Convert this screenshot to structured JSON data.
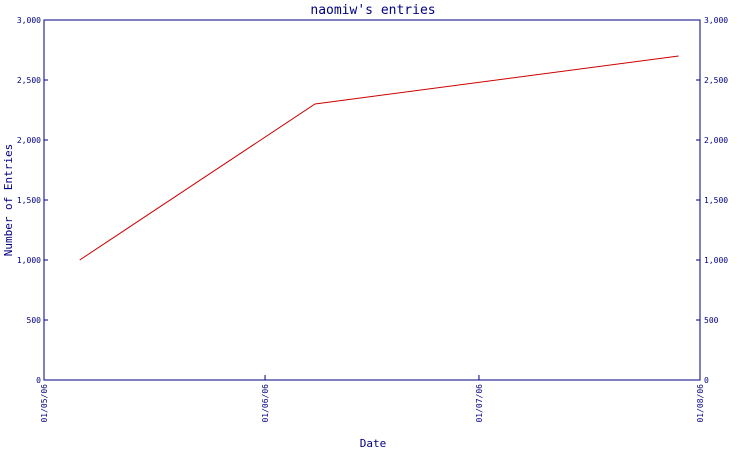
{
  "chart_data": {
    "type": "line",
    "title": "naomiw's entries",
    "xlabel": "Date",
    "ylabel": "Number of Entries",
    "ylim": [
      0,
      3000
    ],
    "y_ticks": [
      0,
      500,
      1000,
      1500,
      2000,
      2500,
      3000
    ],
    "y_tick_labels": [
      "0",
      "500",
      "1,000",
      "1,500",
      "2,000",
      "2,500",
      "3,000"
    ],
    "x_range": [
      "2006-05-01",
      "2006-08-01"
    ],
    "x_ticks": [
      "2006-05-01",
      "2006-06-01",
      "2006-07-01",
      "2006-08-01"
    ],
    "x_tick_labels": [
      "01/05/06",
      "01/06/06",
      "01/07/06",
      "01/08/06"
    ],
    "right_axis_mirrors_left": true,
    "grid": false,
    "series": [
      {
        "x": [
          "2006-05-06",
          "2006-06-08",
          "2006-07-29"
        ],
        "values": [
          1000,
          2300,
          2700
        ]
      }
    ],
    "colors": {
      "line": "#cc0000",
      "axis": "#000080",
      "text": "#000080",
      "background": "#ffffff"
    }
  }
}
